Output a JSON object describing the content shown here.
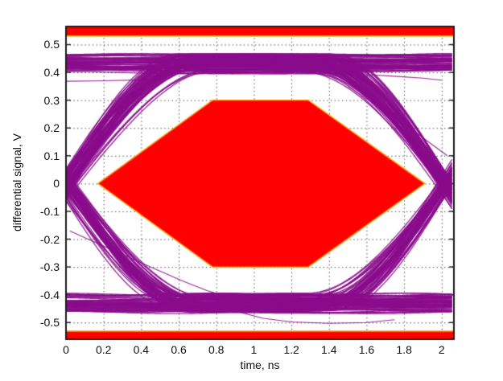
{
  "chart_data": {
    "type": "line",
    "subtype": "eye-diagram-with-mask",
    "title": "",
    "xlabel": "time, ns",
    "ylabel": "differential signal, V",
    "xlim": [
      0,
      2.065
    ],
    "ylim": [
      -0.56,
      0.565
    ],
    "x_ticks": [
      {
        "v": 0,
        "t": "0"
      },
      {
        "v": 0.2,
        "t": "0.2"
      },
      {
        "v": 0.4,
        "t": "0.4"
      },
      {
        "v": 0.6,
        "t": "0.6"
      },
      {
        "v": 0.8,
        "t": "0.8"
      },
      {
        "v": 1,
        "t": "1"
      },
      {
        "v": 1.2,
        "t": "1.2"
      },
      {
        "v": 1.4,
        "t": "1.4"
      },
      {
        "v": 1.6,
        "t": "1.6"
      },
      {
        "v": 1.8,
        "t": "1.8"
      },
      {
        "v": 2,
        "t": "2"
      }
    ],
    "y_ticks": [
      {
        "v": 0.5,
        "t": "0.5"
      },
      {
        "v": 0.4,
        "t": "0.4"
      },
      {
        "v": 0.3,
        "t": "0.3"
      },
      {
        "v": 0.2,
        "t": "0.2"
      },
      {
        "v": 0.1,
        "t": "0.1"
      },
      {
        "v": 0,
        "t": "0"
      },
      {
        "v": -0.1,
        "t": "-0.1"
      },
      {
        "v": -0.2,
        "t": "-0.2"
      },
      {
        "v": -0.3,
        "t": "-0.3"
      },
      {
        "v": -0.4,
        "t": "-0.4"
      },
      {
        "v": -0.5,
        "t": "-0.5"
      }
    ],
    "grid": {
      "on": true,
      "style": "dotted",
      "color": "#3c3c3c"
    },
    "frame": {
      "color": "#1a1a1a",
      "width": 2,
      "tick_len": 6
    },
    "background": "#ffffff",
    "mask": {
      "fill": "#ff0000",
      "edge": "#ff9d00",
      "edge_width": 1.4,
      "hexagon": [
        [
          0.17,
          0
        ],
        [
          0.78,
          0.3
        ],
        [
          1.29,
          0.3
        ],
        [
          1.91,
          0
        ],
        [
          1.29,
          -0.3
        ],
        [
          0.78,
          -0.3
        ]
      ],
      "top_bar": {
        "from": 0.531,
        "to": 0.565
      },
      "bottom_bar": {
        "from": -0.56,
        "to": -0.531
      }
    },
    "signal": {
      "color": "#8a0d8c",
      "alpha": 0.88,
      "line_width": 1.35,
      "count": 240,
      "seed": 7,
      "level_min": 0.398,
      "level_max": 0.464,
      "dur_base": 1.18,
      "dur_step": 0.13,
      "dur_rand": 0.06,
      "left_tc": 0,
      "left_jitter": 0.09,
      "right_tc": 2.02,
      "right_jitter": 0.07,
      "wiggle_amp": 0.004,
      "sample_step": 0.015
    },
    "strays": [
      [
        [
          0.02,
          -0.17
        ],
        [
          0.2,
          -0.225
        ],
        [
          0.35,
          -0.27
        ],
        [
          0.5,
          -0.315
        ],
        [
          0.62,
          -0.35
        ],
        [
          0.75,
          -0.385
        ],
        [
          0.9,
          -0.415
        ],
        [
          1.0,
          -0.43
        ]
      ],
      [
        [
          1.5,
          0.35
        ],
        [
          1.6,
          0.305
        ],
        [
          1.72,
          0.25
        ],
        [
          1.85,
          0.19
        ],
        [
          1.95,
          0.14
        ],
        [
          2.03,
          0.1
        ]
      ],
      [
        [
          0.92,
          -0.462
        ],
        [
          1.05,
          -0.485
        ],
        [
          1.2,
          -0.498
        ],
        [
          1.4,
          -0.503
        ],
        [
          1.6,
          -0.5
        ],
        [
          1.75,
          -0.49
        ]
      ],
      [
        [
          0.0,
          0.368
        ],
        [
          0.2,
          0.37
        ],
        [
          0.4,
          0.373
        ],
        [
          0.55,
          0.38
        ]
      ],
      [
        [
          1.6,
          0.392
        ],
        [
          1.75,
          0.386
        ],
        [
          1.9,
          0.379
        ],
        [
          2.0,
          0.372
        ]
      ]
    ]
  }
}
